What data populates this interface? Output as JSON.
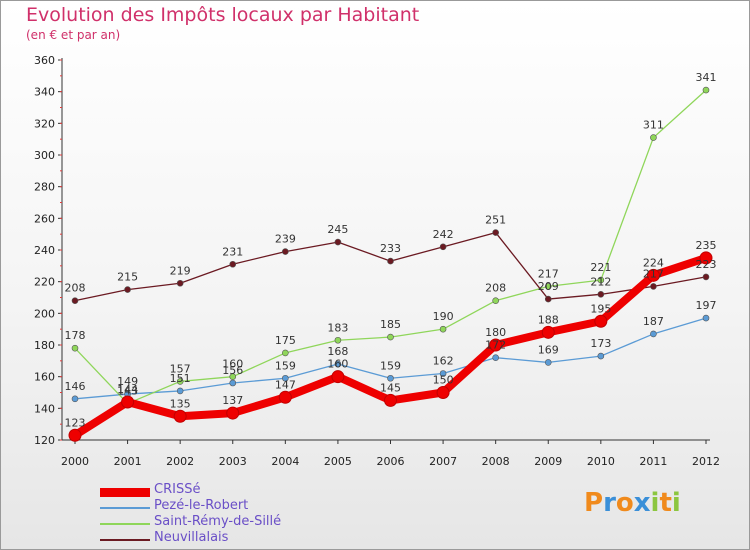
{
  "header": {
    "title": "Evolution des Impôts locaux par Habitant",
    "subtitle": "(en € et par an)"
  },
  "logo": {
    "text": "Proxiti",
    "letters": [
      {
        "ch": "P",
        "color": "#f08a1c"
      },
      {
        "ch": "r",
        "color": "#3a8fd8"
      },
      {
        "ch": "o",
        "color": "#f08a1c"
      },
      {
        "ch": "x",
        "color": "#3a8fd8"
      },
      {
        "ch": "i",
        "color": "#8cc63f"
      },
      {
        "ch": "t",
        "color": "#f08a1c"
      },
      {
        "ch": "i",
        "color": "#8cc63f"
      }
    ]
  },
  "chart_data": {
    "type": "line",
    "title": "Evolution des Impôts locaux par Habitant",
    "subtitle": "(en € et par an)",
    "xlabel": "",
    "ylabel": "",
    "categories": [
      "2000",
      "2001",
      "2002",
      "2003",
      "2004",
      "2005",
      "2006",
      "2007",
      "2008",
      "2009",
      "2010",
      "2011",
      "2012"
    ],
    "ylim": [
      120,
      360
    ],
    "yticks": [
      120,
      140,
      160,
      180,
      200,
      220,
      240,
      260,
      280,
      300,
      320,
      340,
      360
    ],
    "grid": false,
    "legend_position": "bottom-left",
    "series": [
      {
        "name": "CRISSé",
        "color": "#ee0000",
        "values": [
          123,
          144,
          135,
          137,
          147,
          160,
          145,
          150,
          180,
          188,
          195,
          224,
          235
        ],
        "thick": true
      },
      {
        "name": "Pezé-le-Robert",
        "color": "#5b9bd5",
        "values": [
          146,
          149,
          151,
          156,
          159,
          168,
          159,
          162,
          172,
          169,
          173,
          187,
          197
        ],
        "thick": false
      },
      {
        "name": "Saint-Rémy-de-Sillé",
        "color": "#8fd65a",
        "values": [
          178,
          143,
          157,
          160,
          175,
          183,
          185,
          190,
          208,
          217,
          221,
          311,
          341
        ],
        "thick": false
      },
      {
        "name": "Neuvillalais",
        "color": "#6b1a22",
        "values": [
          208,
          215,
          219,
          231,
          239,
          245,
          233,
          242,
          251,
          209,
          212,
          217,
          223
        ],
        "thick": false
      }
    ]
  }
}
